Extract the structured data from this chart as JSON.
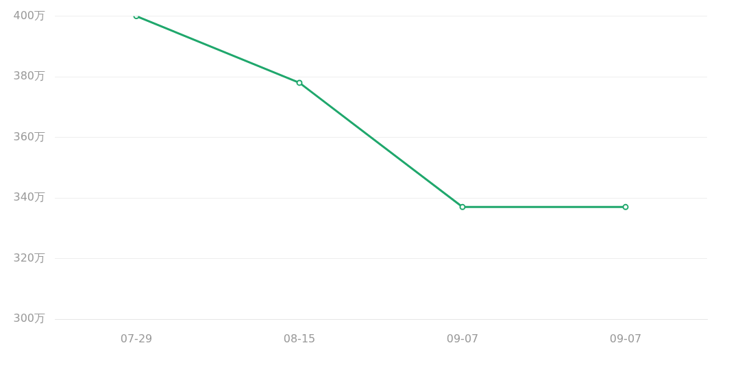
{
  "chart_data": {
    "type": "line",
    "categories": [
      "07-29",
      "08-15",
      "09-07",
      "09-07"
    ],
    "series": [
      {
        "color": "#1fa76c",
        "values": [
          400,
          378,
          337,
          337
        ]
      }
    ],
    "ylim": [
      300,
      400
    ],
    "yticks": [
      {
        "value": 300,
        "label": "300万"
      },
      {
        "value": 320,
        "label": "320万"
      },
      {
        "value": 340,
        "label": "340万"
      },
      {
        "value": 360,
        "label": "360万"
      },
      {
        "value": 380,
        "label": "380万"
      },
      {
        "value": 400,
        "label": "400万"
      }
    ],
    "grid": "y",
    "marker": "circle",
    "line_style": "solid"
  }
}
